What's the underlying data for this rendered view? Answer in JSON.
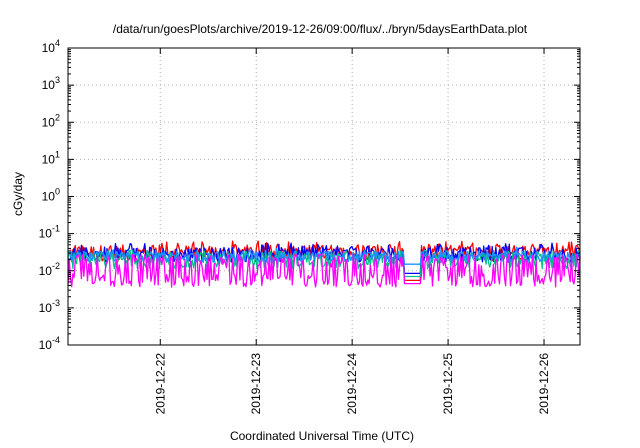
{
  "chart_data": {
    "type": "line",
    "title": "/data/run/goesPlots/archive/2019-12-26/09:00/flux/../bryn/5daysEarthData.plot",
    "xlabel": "Coordinated Universal Time (UTC)",
    "ylabel": "cGy/day",
    "yscale": "log",
    "ylim_exponents": [
      -4,
      4
    ],
    "y_ticks": [
      {
        "base": "10",
        "exp": "4"
      },
      {
        "base": "10",
        "exp": "3"
      },
      {
        "base": "10",
        "exp": "2"
      },
      {
        "base": "10",
        "exp": "1"
      },
      {
        "base": "10",
        "exp": "0"
      },
      {
        "base": "10",
        "exp": "-1"
      },
      {
        "base": "10",
        "exp": "-2"
      },
      {
        "base": "10",
        "exp": "-3"
      },
      {
        "base": "10",
        "exp": "-4"
      }
    ],
    "xlim": [
      "2019-12-21 00:55",
      "2019-12-26 09:00"
    ],
    "x_ticks": [
      "2019-12-22",
      "2019-12-23",
      "2019-12-24",
      "2019-12-25",
      "2019-12-26"
    ],
    "grid": true,
    "gap": [
      "2019-12-24 13:30",
      "2019-12-24 16:40"
    ],
    "series": [
      {
        "color": "#ff0000",
        "base": 0.03,
        "spread": 0.22,
        "spike": 0.045,
        "spike_prob": 0.2,
        "gap_value": 0.0055
      },
      {
        "color": "#0000ff",
        "base": 0.027,
        "spread": 0.2,
        "spike": 0.04,
        "spike_prob": 0.15,
        "gap_value": 0.0085
      },
      {
        "color": "#00c08a",
        "base": 0.02,
        "spread": 0.25,
        "spike": 0.011,
        "spike_prob": 0.25,
        "gap_value": 0.007
      },
      {
        "color": "#1e90ff",
        "base": 0.024,
        "spread": 0.15,
        "spike": 0.03,
        "spike_prob": 0.1,
        "gap_value": 0.015
      },
      {
        "color": "#ff00ff",
        "base": 0.0055,
        "spread": 0.18,
        "spike": 0.02,
        "spike_prob": 0.45,
        "gap_value": 0.0045
      }
    ]
  }
}
